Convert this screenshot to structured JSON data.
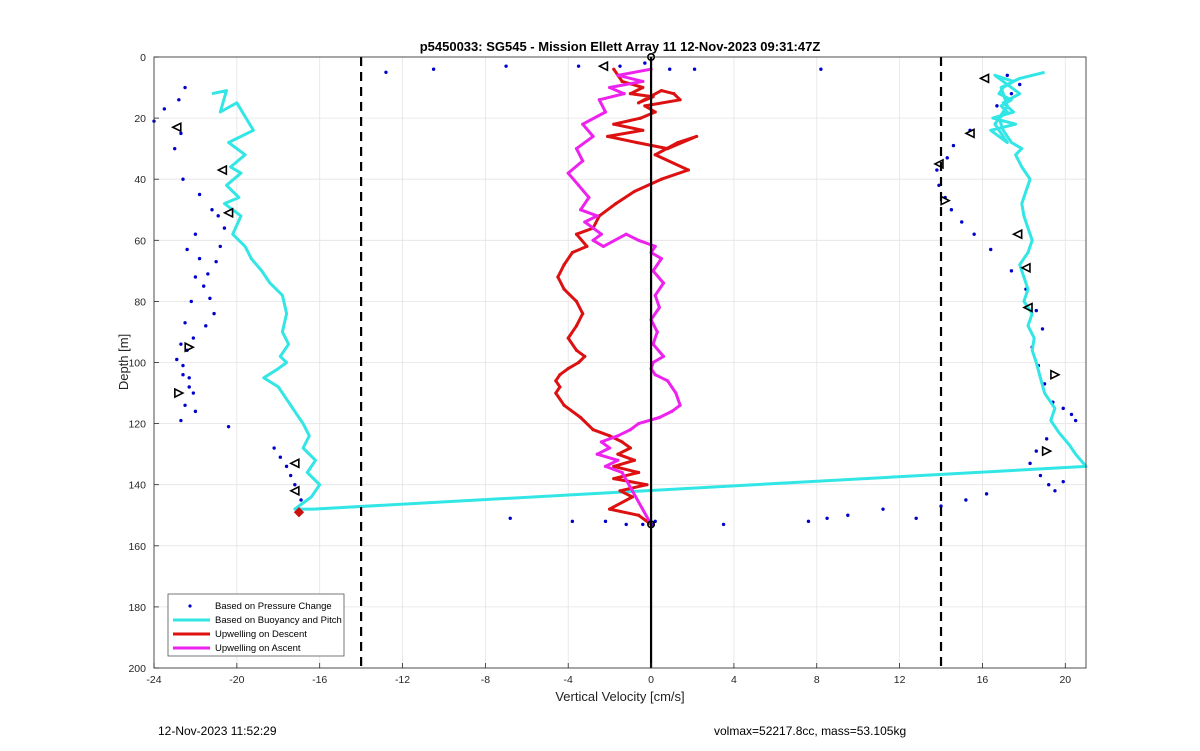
{
  "footer": {
    "timestamp": "12-Nov-2023 11:52:29",
    "info": "volmax=52217.8cc, mass=53.105kg"
  },
  "chart_data": {
    "type": "line",
    "title": "p5450033: SG545 - Mission Ellett Array 11 12-Nov-2023 09:31:47Z",
    "xlabel": "Vertical Velocity [cm/s]",
    "ylabel": "Depth [m]",
    "xlim": [
      -24,
      21
    ],
    "ylim": [
      0,
      200
    ],
    "y_reversed": true,
    "xticks": [
      -24,
      -20,
      -16,
      -12,
      -8,
      -4,
      0,
      4,
      8,
      12,
      16,
      20
    ],
    "yticks": [
      0,
      20,
      40,
      60,
      80,
      100,
      120,
      140,
      160,
      180,
      200
    ],
    "grid": true,
    "legend_location": "bottom-left",
    "reference_lines": [
      {
        "x": -14,
        "style": "dashed",
        "color": "#000000"
      },
      {
        "x": 14,
        "style": "dashed",
        "color": "#000000"
      },
      {
        "x": 0,
        "style": "solid",
        "color": "#000000"
      }
    ],
    "series": [
      {
        "name": "Based on Pressure Change",
        "style": "dots",
        "color": "#0000cc",
        "x": [
          -24,
          -23.5,
          -22.8,
          -22.5,
          -22.7,
          -23,
          -22.6,
          -21.8,
          -21.2,
          -20.9,
          -20.6,
          -20.8,
          -21,
          -21.4,
          -21.6,
          -21.3,
          -21.1,
          -21.5,
          -22.1,
          -22.4,
          -22.6,
          -22.3,
          -22.1,
          -22.5,
          -22.7,
          -22.4,
          -22.0,
          -21.8,
          -22.0,
          -22.2,
          -22.5,
          -22.7,
          -22.9,
          -22.6,
          -22.3,
          -22.0,
          -20.4,
          -18.2,
          -17.9,
          -17.6,
          -17.4,
          -17.2,
          -16.9,
          -12.8,
          -10.5,
          -7,
          -3.5,
          -1.5,
          -0.3,
          0.9,
          2.1,
          8.2,
          -6.8,
          -3.8,
          -2.2,
          -1.2,
          -0.4,
          0.1,
          0.2,
          3.5,
          7.6,
          8.5,
          9.5,
          11.2,
          12.8,
          14.0,
          15.2,
          16.2,
          17.2,
          17.8,
          17.4,
          16.7,
          15.4,
          14.6,
          14.3,
          13.8,
          13.9,
          14.2,
          14.5,
          15.0,
          15.6,
          16.4,
          17.4,
          18.1,
          18.6,
          18.9,
          18.4,
          18.7,
          19.0,
          19.4,
          19.9,
          20.3,
          20.5,
          19.1,
          18.6,
          18.3,
          18.8,
          19.2,
          19.5,
          19.9
        ],
        "y": [
          21,
          17,
          14,
          10,
          25,
          30,
          40,
          45,
          50,
          52,
          56,
          62,
          67,
          71,
          75,
          79,
          84,
          88,
          92,
          96,
          101,
          105,
          110,
          114,
          119,
          63,
          58,
          66,
          72,
          80,
          87,
          94,
          99,
          104,
          108,
          116,
          121,
          128,
          131,
          134,
          137,
          140,
          145,
          5,
          4,
          3,
          3,
          3,
          2,
          4,
          4,
          4,
          151,
          152,
          152,
          153,
          153,
          153,
          152,
          153,
          152,
          151,
          150,
          148,
          151,
          147,
          145,
          143,
          6,
          9,
          12,
          16,
          24,
          29,
          33,
          37,
          42,
          46,
          50,
          54,
          58,
          63,
          70,
          76,
          83,
          89,
          95,
          101,
          107,
          113,
          115,
          117,
          119,
          125,
          129,
          133,
          137,
          140,
          142,
          139
        ]
      },
      {
        "name": "Based on Buoyancy and Pitch",
        "style": "line",
        "color": "#33e6e6",
        "x": [
          -21.2,
          -20.5,
          -20.8,
          -20.0,
          -19.2,
          -20.4,
          -19.6,
          -20.3,
          -19.8,
          -20.5,
          -19.9,
          -20.6,
          -19.8,
          -20.2,
          -19.6,
          -19.3,
          -18.8,
          -18.4,
          -17.8,
          -17.6,
          -17.8,
          -17.5,
          -17.9,
          -17.6,
          -18.0,
          -18.7,
          -18.0,
          -17.6,
          -17.2,
          -16.8,
          -16.5,
          -16.8,
          -16.2,
          -16.6,
          -16.0,
          -16.4,
          -16.8,
          -17.2,
          -16.3,
          21.0,
          20.5,
          20.2,
          19.7,
          19.3,
          19.5,
          19.0,
          18.8,
          18.6,
          18.4,
          18.5,
          18.2,
          18.4,
          18.0,
          18.2,
          18.0,
          17.8,
          18.2,
          18.4,
          18.2,
          18.0,
          17.9,
          18.1,
          18.3,
          17.9,
          17.6,
          17.9,
          17.4,
          17.0,
          16.8,
          17.2,
          16.9,
          17.4,
          16.8,
          17.0,
          17.5,
          16.6,
          17.0,
          17.8,
          17.0,
          17.5,
          16.5,
          17.6,
          16.4,
          16.8,
          17.2,
          16.6,
          17.2,
          16.9,
          17.8,
          19.0
        ],
        "y": [
          12,
          11,
          18,
          15,
          24,
          28,
          32,
          36,
          38,
          42,
          46,
          48,
          52,
          58,
          62,
          66,
          70,
          74,
          78,
          84,
          90,
          94,
          98,
          100,
          102,
          105,
          108,
          112,
          116,
          120,
          124,
          128,
          132,
          136,
          140,
          144,
          146,
          148,
          148,
          134,
          130,
          127,
          123,
          119,
          115,
          110,
          105,
          100,
          96,
          92,
          88,
          84,
          80,
          76,
          72,
          68,
          64,
          60,
          56,
          52,
          48,
          44,
          40,
          36,
          32,
          30,
          28,
          24,
          20,
          18,
          16,
          14,
          12,
          10,
          8,
          6,
          8,
          12,
          15,
          18,
          20,
          22,
          24,
          26,
          28,
          22,
          16,
          10,
          7,
          5
        ]
      },
      {
        "name": "Upwelling on Descent",
        "style": "line",
        "color": "#dd1111",
        "x": [
          -1.8,
          -1.4,
          -0.4,
          -1.0,
          0.1,
          -0.6,
          0.5,
          1.1,
          1.4,
          -0.3,
          0.2,
          -0.5,
          -1.8,
          -0.4,
          -2.1,
          -0.7,
          0.8,
          2.2,
          1.3,
          0.2,
          1.8,
          0.5,
          -0.8,
          -1.7,
          -2.5,
          -2.8,
          -3.6,
          -3.1,
          -3.8,
          -4.2,
          -4.5,
          -4.2,
          -3.6,
          -3.3,
          -3.6,
          -4.0,
          -3.6,
          -3.2,
          -3.5,
          -4.0,
          -4.4,
          -4.6,
          -4.4,
          -4.6,
          -4.2,
          -3.4,
          -2.8,
          -2.0,
          -1.4,
          -1.0,
          -1.6,
          -0.8,
          -1.8,
          -0.6,
          -1.8,
          -0.2,
          -1.5,
          -0.9,
          -2.0,
          -0.6,
          0
        ],
        "y": [
          4,
          8,
          10,
          12,
          13,
          15,
          11,
          12,
          14,
          16,
          18,
          20,
          22,
          24,
          26,
          28,
          30,
          26,
          28,
          32,
          37,
          40,
          44,
          48,
          52,
          56,
          58,
          62,
          64,
          68,
          72,
          76,
          80,
          84,
          88,
          92,
          96,
          98,
          100,
          102,
          104,
          106,
          108,
          110,
          114,
          118,
          122,
          124,
          126,
          128,
          130,
          132,
          134,
          136,
          138,
          140,
          142,
          144,
          148,
          150,
          153
        ]
      },
      {
        "name": "Upwelling on Ascent",
        "style": "line",
        "color": "#ee22ee",
        "x": [
          0,
          -1.6,
          -0.4,
          -2.0,
          -1.3,
          -2.5,
          -2.2,
          -3.3,
          -2.8,
          -3.6,
          -3.3,
          -4.0,
          -3.5,
          -3.0,
          -3.4,
          -2.6,
          -3.2,
          -2.8,
          -2.4,
          -2.8,
          -2.3,
          -1.2,
          -0.6,
          0.2,
          0.0,
          0.5,
          0.1,
          0.6,
          0.2,
          0.4,
          0.0,
          0.3,
          0.1,
          0.6,
          0.1,
          0.0,
          0.2,
          0.8,
          1.2,
          1.4,
          1.0,
          0.4,
          -0.6,
          -1.0,
          -1.6,
          -2.4,
          -2.0,
          -2.6,
          -1.6,
          -2.2,
          -1.4,
          0
        ],
        "y": [
          4,
          6,
          8,
          10,
          12,
          14,
          18,
          22,
          26,
          30,
          34,
          38,
          42,
          46,
          50,
          52,
          54,
          56,
          58,
          60,
          62,
          58,
          60,
          62,
          64,
          66,
          70,
          74,
          78,
          82,
          86,
          90,
          94,
          98,
          100,
          102,
          104,
          106,
          110,
          114,
          116,
          118,
          120,
          122,
          124,
          126,
          128,
          130,
          132,
          134,
          136,
          153
        ]
      }
    ],
    "marker_series": [
      {
        "marker": "triangle-left",
        "color": "#000000",
        "points": [
          [
            -2.3,
            3
          ],
          [
            -22.9,
            23
          ],
          [
            -20.7,
            37
          ],
          [
            -20.4,
            51
          ],
          [
            -17.2,
            133
          ],
          [
            -17.2,
            142
          ],
          [
            16.1,
            7
          ],
          [
            15.4,
            25
          ],
          [
            13.9,
            35
          ],
          [
            17.7,
            58
          ],
          [
            18.1,
            69
          ],
          [
            18.2,
            82
          ]
        ]
      },
      {
        "marker": "triangle-right",
        "color": "#000000",
        "points": [
          [
            -22.3,
            95
          ],
          [
            -22.8,
            110
          ],
          [
            19.5,
            104
          ],
          [
            19.1,
            129
          ],
          [
            14.2,
            47
          ]
        ]
      },
      {
        "marker": "diamond",
        "color": "#cc1111",
        "points": [
          [
            -17.0,
            149
          ]
        ]
      }
    ],
    "special_markers": [
      {
        "marker": "circle",
        "color": "#000000",
        "points": [
          [
            0,
            0
          ],
          [
            0,
            153
          ]
        ]
      }
    ]
  }
}
